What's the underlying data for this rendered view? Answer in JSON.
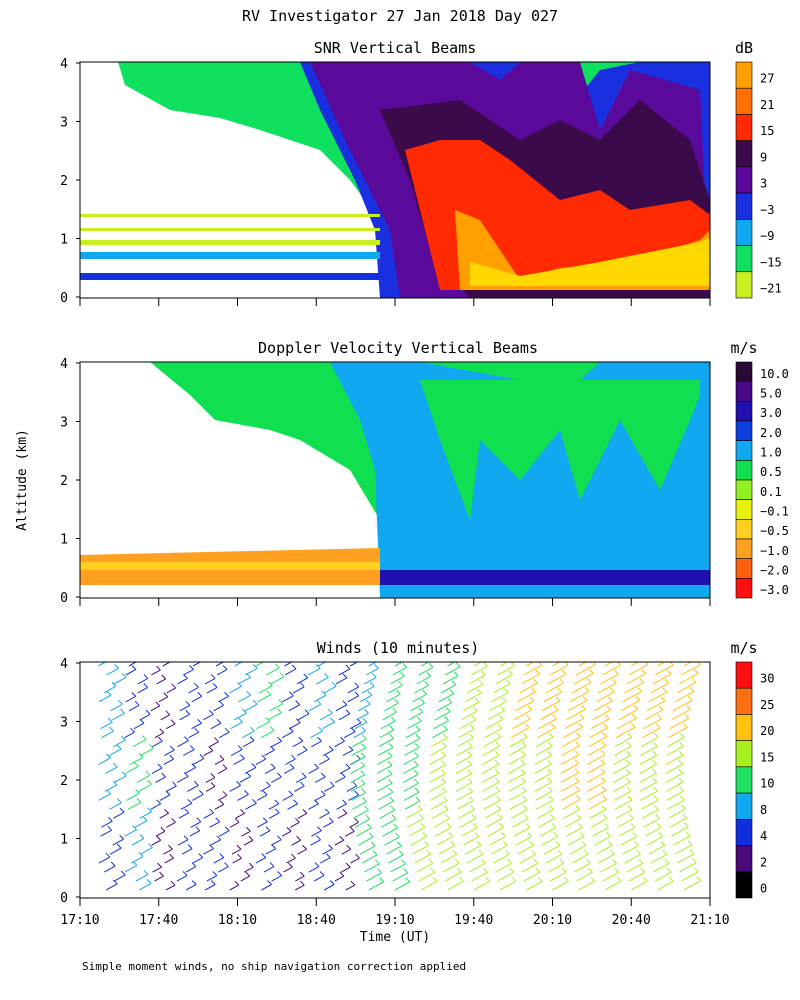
{
  "page_title": "RV Investigator  27 Jan 2018 Day 027",
  "shared_ylabel": "Altitude (km)",
  "shared_xlabel": "Time (UT)",
  "x_ticks": [
    "17:10",
    "17:40",
    "18:10",
    "18:40",
    "19:10",
    "19:40",
    "20:10",
    "20:40",
    "21:10"
  ],
  "y_ticks": [
    "0",
    "1",
    "2",
    "3",
    "4"
  ],
  "footnote": "Simple moment winds, no ship navigation correction applied",
  "chart_data": [
    {
      "type": "heatmap",
      "title": "SNR Vertical Beams",
      "xlabel": "",
      "ylabel": "Altitude (km)",
      "xlim": [
        "17:10",
        "21:10"
      ],
      "ylim": [
        0,
        4
      ],
      "unit": "dB",
      "colorbar": {
        "labels": [
          "27",
          "21",
          "15",
          "9",
          "3",
          "−3",
          "−9",
          "−15",
          "−21"
        ],
        "colors": [
          "#ffa000",
          "#ff7000",
          "#ff2a00",
          "#3a0a4a",
          "#5a0a9a",
          "#1a30e0",
          "#10a8f0",
          "#10e060",
          "#c8f020"
        ]
      },
      "description_values": [
        {
          "time": "17:10-18:55",
          "altitude_km": [
            0,
            1.6
          ],
          "dB": "-21 to -3 (layered near surface)"
        },
        {
          "time": "18:55-19:30",
          "altitude_km": [
            0,
            4
          ],
          "dB": "-9 to 9"
        },
        {
          "time": "19:30-21:10",
          "altitude_km": [
            0.2,
            2.3
          ],
          "dB": "9 to 27"
        },
        {
          "time": "19:20-21:10",
          "altitude_km": [
            2,
            4
          ],
          "dB": "3 to 9"
        }
      ]
    },
    {
      "type": "heatmap",
      "title": "Doppler Velocity Vertical Beams",
      "xlabel": "",
      "ylabel": "Altitude (km)",
      "xlim": [
        "17:10",
        "21:10"
      ],
      "ylim": [
        0,
        4
      ],
      "unit": "m/s",
      "colorbar": {
        "labels": [
          "10.0",
          "5.0",
          "3.0",
          "2.0",
          "1.0",
          "0.5",
          "0.1",
          "−0.1",
          "−0.5",
          "−1.0",
          "−2.0",
          "−3.0"
        ],
        "colors": [
          "#2a0a34",
          "#4a0a8a",
          "#2010b0",
          "#1040e0",
          "#10a8f0",
          "#10e050",
          "#90f020",
          "#e8f010",
          "#ffd020",
          "#ffa020",
          "#ff6010",
          "#ff1010"
        ]
      },
      "description_values": [
        {
          "time": "17:10-18:55",
          "altitude_km": [
            0.2,
            0.85
          ],
          "m_per_s": "-0.5 to -1.0"
        },
        {
          "time": "18:55-21:10",
          "altitude_km": [
            0.2,
            0.4
          ],
          "m_per_s": "3.0"
        },
        {
          "time": "18:55-21:10",
          "altitude_km": [
            0.4,
            4
          ],
          "m_per_s": "0.5 to 1.0"
        }
      ]
    },
    {
      "type": "scatter",
      "title": "Winds (10 minutes)",
      "xlabel": "Time (UT)",
      "ylabel": "Altitude (km)",
      "xlim": [
        "17:10",
        "21:10"
      ],
      "ylim": [
        0,
        4
      ],
      "unit": "m/s",
      "colorbar": {
        "labels": [
          "30",
          "25",
          "20",
          "15",
          "10",
          "8",
          "4",
          "2",
          "0"
        ],
        "colors": [
          "#ff1010",
          "#ff7010",
          "#ffc010",
          "#a8f020",
          "#20e060",
          "#10a8f0",
          "#1030e0",
          "#4a0a7a",
          "#000000"
        ]
      },
      "profiles": [
        {
          "time": "17:20",
          "speed_ms": [
            6,
            8,
            8
          ]
        },
        {
          "time": "17:30",
          "speed_ms": [
            8,
            10,
            4
          ]
        },
        {
          "time": "17:40",
          "speed_ms": [
            2,
            4,
            2
          ]
        },
        {
          "time": "17:50",
          "speed_ms": [
            4,
            6,
            4
          ]
        },
        {
          "time": "18:00",
          "speed_ms": [
            4,
            2,
            4
          ]
        },
        {
          "time": "18:10",
          "speed_ms": [
            2,
            6,
            8
          ]
        },
        {
          "time": "18:20",
          "speed_ms": [
            4,
            4,
            10
          ]
        },
        {
          "time": "18:30",
          "speed_ms": [
            2,
            4,
            6
          ]
        },
        {
          "time": "18:40",
          "speed_ms": [
            4,
            4,
            8
          ]
        },
        {
          "time": "18:50",
          "speed_ms": [
            2,
            4,
            6
          ]
        },
        {
          "time": "19:00",
          "speed_ms": [
            14,
            12,
            8
          ]
        },
        {
          "time": "19:10",
          "speed_ms": [
            14,
            14,
            12
          ]
        },
        {
          "time": "19:20",
          "speed_ms": [
            16,
            14,
            12
          ]
        },
        {
          "time": "19:30",
          "speed_ms": [
            16,
            16,
            14
          ]
        },
        {
          "time": "19:40",
          "speed_ms": [
            16,
            16,
            16
          ]
        },
        {
          "time": "19:50",
          "speed_ms": [
            16,
            18,
            18
          ]
        },
        {
          "time": "20:00",
          "speed_ms": [
            16,
            18,
            20
          ]
        },
        {
          "time": "20:10",
          "speed_ms": [
            16,
            18,
            20
          ]
        },
        {
          "time": "20:20",
          "speed_ms": [
            16,
            20,
            22
          ]
        },
        {
          "time": "20:30",
          "speed_ms": [
            16,
            20,
            20
          ]
        },
        {
          "time": "20:40",
          "speed_ms": [
            16,
            18,
            22
          ]
        },
        {
          "time": "20:50",
          "speed_ms": [
            16,
            18,
            20
          ]
        },
        {
          "time": "21:00",
          "speed_ms": [
            18,
            18,
            22
          ]
        }
      ]
    }
  ]
}
